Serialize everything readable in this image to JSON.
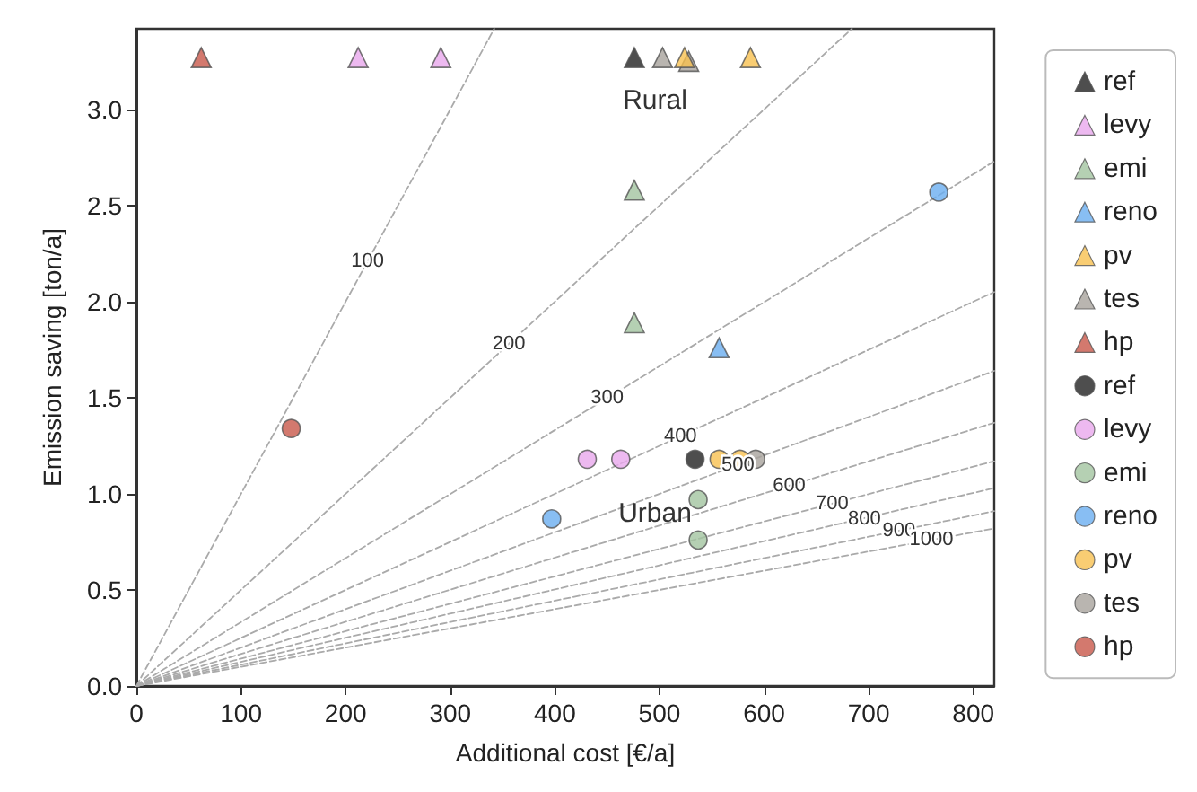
{
  "chart_data": {
    "type": "scatter",
    "xlabel": "Additional cost [€/a]",
    "ylabel": "Emission saving [ton/a]",
    "xlim": [
      0,
      820
    ],
    "xticks": [
      0,
      100,
      200,
      300,
      400,
      500,
      600,
      700,
      800
    ],
    "ylim": [
      0,
      3.42
    ],
    "yticks": [
      {
        "value": 0,
        "label": "0.0"
      },
      {
        "value": 0.5,
        "label": "0.5"
      },
      {
        "value": 1,
        "label": "1.0"
      },
      {
        "value": 1.5,
        "label": "1.5"
      },
      {
        "value": 2,
        "label": "2.0"
      },
      {
        "value": 2.5,
        "label": "2.5"
      },
      {
        "value": 3,
        "label": "3.0"
      }
    ],
    "grid": false,
    "legend": "right",
    "series": [
      {
        "type": "line",
        "color": "#aaaaaa",
        "line_style": "dashed",
        "marker": "none",
        "x": [
          0,
          342
        ],
        "values": [
          0,
          3.42
        ]
      },
      {
        "type": "line",
        "color": "#aaaaaa",
        "line_style": "dashed",
        "marker": "none",
        "x": [
          0,
          684
        ],
        "values": [
          0,
          3.42
        ]
      },
      {
        "type": "line",
        "color": "#aaaaaa",
        "line_style": "dashed",
        "marker": "none",
        "x": [
          0,
          820
        ],
        "values": [
          0,
          2.73
        ]
      },
      {
        "type": "line",
        "color": "#aaaaaa",
        "line_style": "dashed",
        "marker": "none",
        "x": [
          0,
          820
        ],
        "values": [
          0,
          2.05
        ]
      },
      {
        "type": "line",
        "color": "#aaaaaa",
        "line_style": "dashed",
        "marker": "none",
        "x": [
          0,
          820
        ],
        "values": [
          0,
          1.64
        ]
      },
      {
        "type": "line",
        "color": "#aaaaaa",
        "line_style": "dashed",
        "marker": "none",
        "x": [
          0,
          820
        ],
        "values": [
          0,
          1.37
        ]
      },
      {
        "type": "line",
        "color": "#aaaaaa",
        "line_style": "dashed",
        "marker": "none",
        "x": [
          0,
          820
        ],
        "values": [
          0,
          1.17
        ]
      },
      {
        "type": "line",
        "color": "#aaaaaa",
        "line_style": "dashed",
        "marker": "none",
        "x": [
          0,
          820
        ],
        "values": [
          0,
          1.03
        ]
      },
      {
        "type": "line",
        "color": "#aaaaaa",
        "line_style": "dashed",
        "marker": "none",
        "x": [
          0,
          820
        ],
        "values": [
          0,
          0.91
        ]
      },
      {
        "type": "line",
        "color": "#aaaaaa",
        "line_style": "dashed",
        "marker": "none",
        "x": [
          0,
          820
        ],
        "values": [
          0,
          0.82
        ]
      },
      {
        "name": "ref",
        "marker": "triangle",
        "color": "#222222",
        "x": [
          476
        ],
        "values": [
          3.27
        ]
      },
      {
        "name": "levy",
        "marker": "triangle",
        "color": "#e8a8ec",
        "x": [
          212,
          291
        ],
        "values": [
          3.27,
          3.27
        ]
      },
      {
        "name": "emi",
        "marker": "triangle",
        "color": "#a3c4a0",
        "x": [
          476,
          476
        ],
        "values": [
          2.58,
          1.89
        ]
      },
      {
        "name": "reno",
        "marker": "triangle",
        "color": "#6aaef0",
        "x": [
          557
        ],
        "values": [
          1.76
        ]
      },
      {
        "name": "pv",
        "marker": "triangle",
        "color": "#f8c050",
        "x": [
          524,
          587
        ],
        "values": [
          3.27,
          3.27
        ]
      },
      {
        "name": "tes",
        "marker": "triangle",
        "color": "#a8a39c",
        "x": [
          503,
          528
        ],
        "values": [
          3.27,
          3.25
        ]
      },
      {
        "name": "hp",
        "marker": "triangle",
        "color": "#c8574a",
        "x": [
          62
        ],
        "values": [
          3.27
        ]
      },
      {
        "name": "ref",
        "marker": "circle",
        "color": "#222222",
        "x": [
          534
        ],
        "values": [
          1.18
        ]
      },
      {
        "name": "levy",
        "marker": "circle",
        "color": "#e8a8ec",
        "x": [
          431,
          463
        ],
        "values": [
          1.18,
          1.18
        ]
      },
      {
        "name": "emi",
        "marker": "circle",
        "color": "#a3c4a0",
        "x": [
          537,
          537
        ],
        "values": [
          0.97,
          0.76
        ]
      },
      {
        "name": "reno",
        "marker": "circle",
        "color": "#6aaef0",
        "x": [
          397,
          767
        ],
        "values": [
          0.87,
          2.57
        ]
      },
      {
        "name": "pv",
        "marker": "circle",
        "color": "#f8c050",
        "x": [
          557,
          577
        ],
        "values": [
          1.18,
          1.18
        ]
      },
      {
        "name": "tes",
        "marker": "circle",
        "color": "#a8a39c",
        "x": [
          592
        ],
        "values": [
          1.18
        ]
      },
      {
        "name": "hp",
        "marker": "circle",
        "color": "#c8574a",
        "x": [
          148
        ],
        "values": [
          1.34
        ]
      }
    ],
    "annotations": [
      {
        "text": "100",
        "x": 221,
        "y": 2.21
      },
      {
        "text": "200",
        "x": 356,
        "y": 1.78
      },
      {
        "text": "300",
        "x": 450,
        "y": 1.5
      },
      {
        "text": "400",
        "x": 520,
        "y": 1.3
      },
      {
        "text": "500",
        "x": 575,
        "y": 1.15
      },
      {
        "text": "600",
        "x": 624,
        "y": 1.04
      },
      {
        "text": "700",
        "x": 665,
        "y": 0.95
      },
      {
        "text": "800",
        "x": 696,
        "y": 0.87
      },
      {
        "text": "900",
        "x": 729,
        "y": 0.81
      },
      {
        "text": "1000",
        "x": 760,
        "y": 0.76
      },
      "Rural",
      "Urban"
    ]
  }
}
